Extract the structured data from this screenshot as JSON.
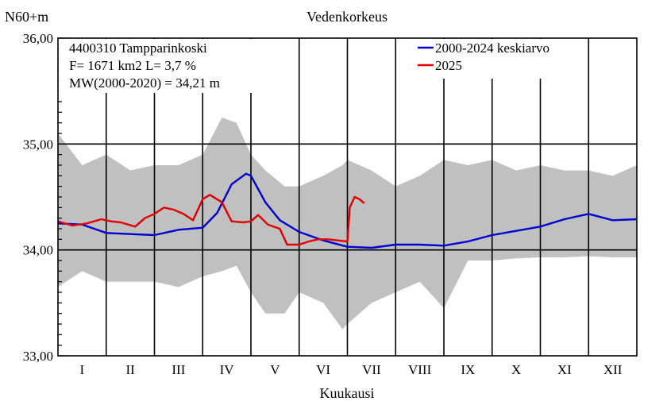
{
  "chart_data": {
    "type": "line",
    "title": "Vedenkorkeus",
    "ylabel": "N60+m",
    "xlabel": "Kuukausi",
    "ylim": [
      33.0,
      36.0
    ],
    "y_ticks": [
      "33,00",
      "34,00",
      "35,00",
      "36,00"
    ],
    "categories": [
      "I",
      "II",
      "III",
      "IV",
      "V",
      "VI",
      "VII",
      "VIII",
      "IX",
      "X",
      "XI",
      "XII"
    ],
    "info_lines": [
      "4400310 Tampparinkoski",
      "F=   1671 km2 L=  3,7 %",
      "MW(2000-2020) = 34,21 m"
    ],
    "grid": true,
    "legend_position": "top-right",
    "band": {
      "color": "#c0c0c0",
      "months": [
        0,
        0.5,
        1,
        1.5,
        2,
        2.5,
        3,
        3.4,
        3.7,
        4,
        4.3,
        4.7,
        5,
        5.5,
        5.9,
        6,
        6.5,
        7,
        7.5,
        8,
        8.5,
        9,
        9.5,
        10,
        10.5,
        11,
        11.5,
        12
      ],
      "upper": [
        35.1,
        34.8,
        34.9,
        34.75,
        34.8,
        34.8,
        34.9,
        35.25,
        35.2,
        34.9,
        34.75,
        34.6,
        34.6,
        34.7,
        34.8,
        34.85,
        34.75,
        34.6,
        34.7,
        34.85,
        34.8,
        34.85,
        34.75,
        34.8,
        34.75,
        34.75,
        34.7,
        34.8
      ],
      "lower": [
        33.65,
        33.8,
        33.7,
        33.7,
        33.7,
        33.65,
        33.75,
        33.8,
        33.85,
        33.6,
        33.4,
        33.4,
        33.6,
        33.5,
        33.25,
        33.3,
        33.5,
        33.6,
        33.7,
        33.45,
        33.9,
        33.9,
        33.92,
        33.93,
        33.93,
        33.94,
        33.93,
        33.93
      ]
    },
    "series": [
      {
        "name": "2000-2024 keskiarvo",
        "color": "#0000d0",
        "x": [
          0,
          0.5,
          1,
          1.5,
          2,
          2.5,
          3,
          3.3,
          3.6,
          3.9,
          4,
          4.3,
          4.6,
          5,
          5.5,
          6,
          6.5,
          7,
          7.5,
          8,
          8.5,
          9,
          9.5,
          10,
          10.5,
          11,
          11.5,
          12
        ],
        "y": [
          34.25,
          34.24,
          34.16,
          34.15,
          34.14,
          34.19,
          34.21,
          34.35,
          34.62,
          34.72,
          34.7,
          34.45,
          34.28,
          34.17,
          34.09,
          34.03,
          34.02,
          34.05,
          34.05,
          34.04,
          34.08,
          34.14,
          34.18,
          34.22,
          34.29,
          34.34,
          34.28,
          34.29
        ]
      },
      {
        "name": "2025",
        "color": "#e00000",
        "x": [
          0,
          0.3,
          0.6,
          0.9,
          1.1,
          1.3,
          1.6,
          1.8,
          2.0,
          2.2,
          2.4,
          2.6,
          2.8,
          3.0,
          3.15,
          3.4,
          3.6,
          3.85,
          4.0,
          4.15,
          4.35,
          4.6,
          4.75,
          5.0,
          5.2,
          5.4,
          5.6,
          5.8,
          6.0,
          6.05,
          6.15,
          6.25,
          6.35
        ],
        "y": [
          34.27,
          34.23,
          34.25,
          34.29,
          34.27,
          34.26,
          34.22,
          34.3,
          34.34,
          34.4,
          34.38,
          34.34,
          34.28,
          34.48,
          34.52,
          34.45,
          34.27,
          34.26,
          34.27,
          34.33,
          34.24,
          34.2,
          34.05,
          34.05,
          34.08,
          34.1,
          34.1,
          34.09,
          34.08,
          34.4,
          34.5,
          34.48,
          34.44
        ]
      }
    ]
  }
}
